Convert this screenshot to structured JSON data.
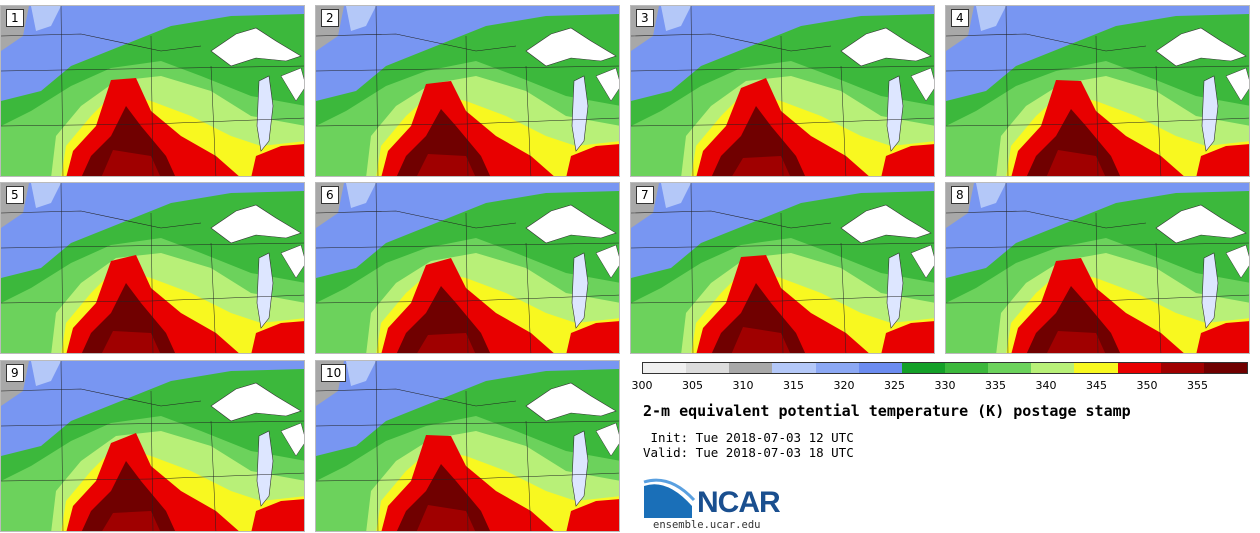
{
  "panels": [
    "1",
    "2",
    "3",
    "4",
    "5",
    "6",
    "7",
    "8",
    "9",
    "10"
  ],
  "colorbar": {
    "ticks": [
      "300",
      "305",
      "310",
      "315",
      "320",
      "325",
      "330",
      "335",
      "340",
      "345",
      "350",
      "355"
    ],
    "colors": [
      "#f0f0f0",
      "#dcdcdc",
      "#a8a8a8",
      "#b4c8f8",
      "#8ca8f4",
      "#6c8cf0",
      "#14a028",
      "#3cb83c",
      "#6cd25c",
      "#b8f078",
      "#f8f820",
      "#e80000",
      "#a00000",
      "#700000"
    ]
  },
  "title": "2-m equivalent potential temperature (K) postage stamp",
  "init": " Init: Tue 2018-07-03 12 UTC",
  "valid": "Valid: Tue 2018-07-03 18 UTC",
  "logo": {
    "name": "NCAR",
    "url": "ensemble.ucar.edu"
  }
}
